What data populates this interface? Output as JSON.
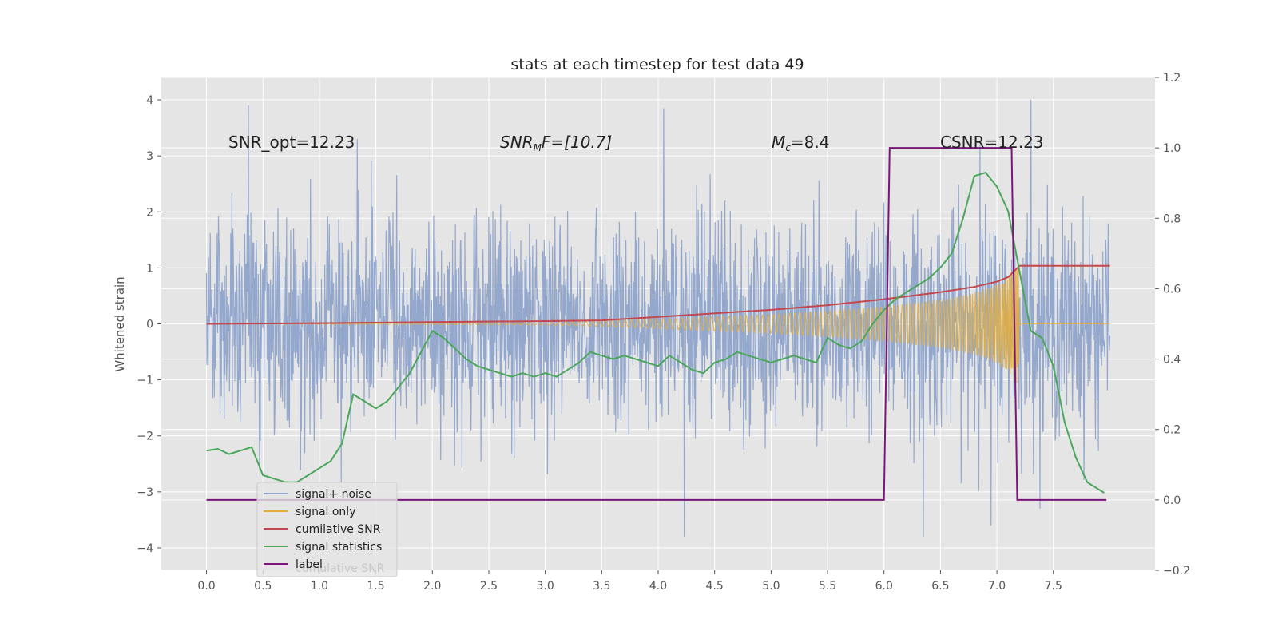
{
  "chart_data": {
    "type": "line",
    "title": "stats at each timestep for test data 49",
    "ylabel": "Whitened strain",
    "xlim": [
      -0.4,
      8.4
    ],
    "ylim_left": [
      -4.4,
      4.4
    ],
    "ylim_right": [
      -0.2,
      1.2
    ],
    "xticks": [
      "0.0",
      "0.5",
      "1.0",
      "1.5",
      "2.0",
      "2.5",
      "3.0",
      "3.5",
      "4.0",
      "4.5",
      "5.0",
      "5.5",
      "6.0",
      "6.5",
      "7.0",
      "7.5"
    ],
    "yticks_left": [
      "4",
      "3",
      "2",
      "1",
      "0",
      "−1",
      "−2",
      "−3",
      "−4"
    ],
    "yticks_right": [
      "1.2",
      "1.0",
      "0.8",
      "0.6",
      "0.4",
      "0.2",
      "0.0",
      "−0.2"
    ],
    "grid": true,
    "legend_position": "lower-left",
    "annotations": {
      "snr_opt": "SNR_opt=12.23",
      "snr_mf_base": "SNR",
      "snr_mf_sub": "M",
      "snr_mf_rest": "F=[10.7]",
      "mc_base": "M",
      "mc_sub": "c",
      "mc_rest": "=8.4",
      "csnr": "CSNR=12.23"
    },
    "legend_ghost_text": "cumulative SNR",
    "colors": {
      "signal_noise": "#8fa4cb",
      "signal_only": "#e5ae38",
      "cumulative_snr": "#c4474d",
      "signal_statistics": "#4aa65b",
      "label": "#7a167a",
      "background": "#e5e5e5",
      "grid": "#ffffff"
    },
    "series": [
      {
        "name": "signal+ noise",
        "axis": "left",
        "description_kind": "noise",
        "x_range": [
          0.0,
          8.0
        ],
        "amplitude_std": 0.95,
        "peaks_max": [
          [
            0.37,
            3.9
          ],
          [
            4.05,
            3.85
          ],
          [
            7.3,
            4.0
          ],
          [
            6.85,
            3.2
          ]
        ],
        "peaks_min": [
          [
            6.35,
            -3.8
          ],
          [
            4.23,
            -3.8
          ],
          [
            6.95,
            -3.6
          ]
        ]
      },
      {
        "name": "signal only",
        "axis": "left",
        "envelope": {
          "x": [
            0.0,
            3.0,
            3.5,
            4.0,
            4.5,
            5.0,
            5.5,
            6.0,
            6.5,
            6.8,
            7.0,
            7.1,
            7.15,
            7.19,
            7.2,
            8.0
          ],
          "y": [
            0.0,
            0.02,
            0.05,
            0.09,
            0.13,
            0.17,
            0.23,
            0.31,
            0.43,
            0.55,
            0.7,
            0.85,
            1.0,
            1.1,
            0.0,
            0.0
          ]
        }
      },
      {
        "name": "cumilative SNR",
        "axis": "right",
        "x": [
          0.0,
          1.0,
          2.0,
          3.0,
          3.5,
          4.0,
          4.5,
          5.0,
          5.5,
          6.0,
          6.5,
          6.8,
          7.0,
          7.1,
          7.2,
          8.0
        ],
        "y": [
          0.5,
          0.502,
          0.505,
          0.508,
          0.51,
          0.52,
          0.53,
          0.54,
          0.553,
          0.57,
          0.59,
          0.605,
          0.62,
          0.633,
          0.665,
          0.665
        ]
      },
      {
        "name": "signal statistics",
        "axis": "right",
        "x": [
          0.0,
          0.1,
          0.2,
          0.3,
          0.4,
          0.5,
          0.6,
          0.7,
          0.8,
          0.9,
          1.0,
          1.1,
          1.2,
          1.3,
          1.4,
          1.5,
          1.6,
          1.7,
          1.8,
          1.9,
          2.0,
          2.1,
          2.2,
          2.3,
          2.4,
          2.5,
          2.6,
          2.7,
          2.8,
          2.9,
          3.0,
          3.1,
          3.2,
          3.3,
          3.4,
          3.5,
          3.6,
          3.7,
          3.8,
          3.9,
          4.0,
          4.1,
          4.2,
          4.3,
          4.4,
          4.5,
          4.6,
          4.7,
          4.8,
          4.9,
          5.0,
          5.1,
          5.2,
          5.3,
          5.4,
          5.5,
          5.6,
          5.7,
          5.8,
          5.9,
          6.0,
          6.1,
          6.2,
          6.3,
          6.4,
          6.5,
          6.6,
          6.7,
          6.8,
          6.9,
          7.0,
          7.1,
          7.2,
          7.3,
          7.4,
          7.5,
          7.6,
          7.7,
          7.8,
          7.9,
          7.95
        ],
        "y": [
          0.14,
          0.145,
          0.13,
          0.14,
          0.15,
          0.07,
          0.06,
          0.05,
          0.05,
          0.07,
          0.09,
          0.11,
          0.16,
          0.3,
          0.28,
          0.26,
          0.28,
          0.32,
          0.36,
          0.42,
          0.48,
          0.46,
          0.43,
          0.4,
          0.38,
          0.37,
          0.36,
          0.35,
          0.36,
          0.35,
          0.36,
          0.35,
          0.37,
          0.39,
          0.42,
          0.41,
          0.4,
          0.41,
          0.4,
          0.39,
          0.38,
          0.41,
          0.39,
          0.37,
          0.36,
          0.39,
          0.4,
          0.42,
          0.41,
          0.4,
          0.39,
          0.4,
          0.41,
          0.4,
          0.39,
          0.46,
          0.44,
          0.43,
          0.45,
          0.5,
          0.54,
          0.57,
          0.59,
          0.61,
          0.63,
          0.66,
          0.7,
          0.8,
          0.92,
          0.93,
          0.89,
          0.82,
          0.65,
          0.48,
          0.46,
          0.38,
          0.22,
          0.12,
          0.05,
          0.03,
          0.02
        ]
      },
      {
        "name": "label",
        "axis": "right",
        "x": [
          0.0,
          6.0,
          6.05,
          7.13,
          7.18,
          7.97
        ],
        "y": [
          0.0,
          0.0,
          1.0,
          1.0,
          0.0,
          0.0
        ]
      }
    ]
  }
}
